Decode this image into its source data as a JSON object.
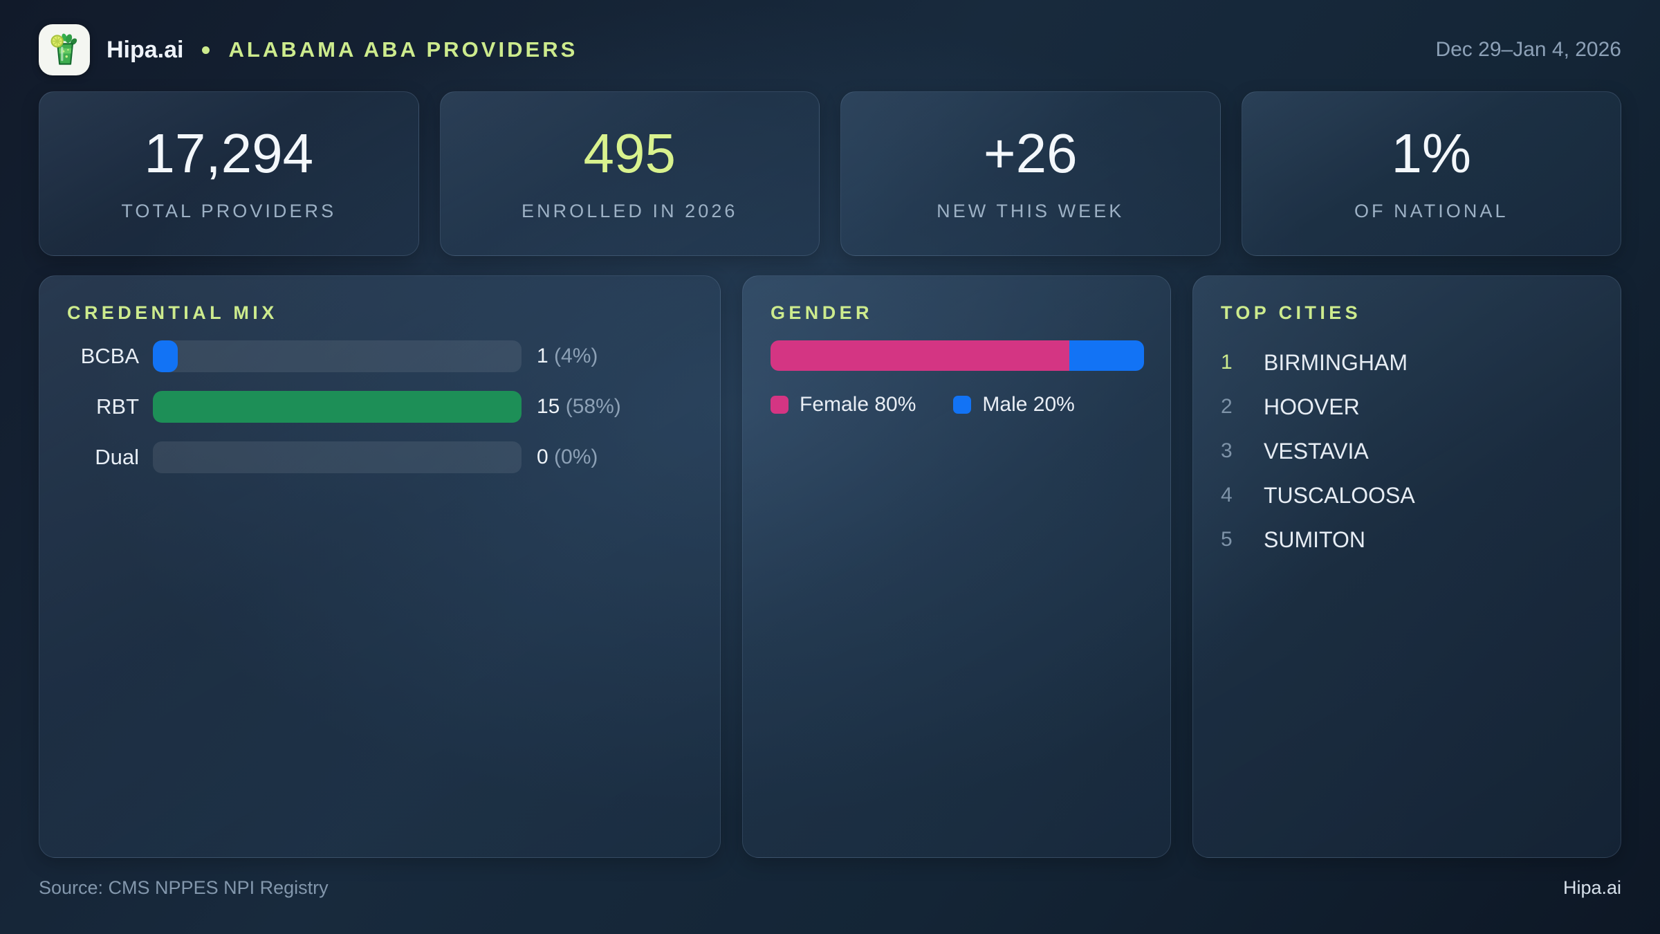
{
  "header": {
    "brand": "Hipa.ai",
    "title": "ALABAMA ABA PROVIDERS",
    "date_range": "Dec 29–Jan 4, 2026"
  },
  "stats": [
    {
      "value": "17,294",
      "label": "TOTAL PROVIDERS",
      "accent": false
    },
    {
      "value": "495",
      "label": "ENROLLED IN 2026",
      "accent": true
    },
    {
      "value": "+26",
      "label": "NEW THIS WEEK",
      "accent": false
    },
    {
      "value": "1%",
      "label": "OF NATIONAL",
      "accent": false
    }
  ],
  "credential_mix": {
    "title": "CREDENTIAL MIX",
    "rows": [
      {
        "label": "BCBA",
        "count": 1,
        "pct_display": "(4%)",
        "color": "#1273f5"
      },
      {
        "label": "RBT",
        "count": 15,
        "pct_display": "(58%)",
        "color": "#1d8f57"
      },
      {
        "label": "Dual",
        "count": 0,
        "pct_display": "(0%)",
        "color": "#1273f5"
      }
    ]
  },
  "gender": {
    "title": "GENDER",
    "segments": [
      {
        "name": "Female",
        "pct": 80,
        "color": "#d43583",
        "legend_label": "Female 80%"
      },
      {
        "name": "Male",
        "pct": 20,
        "color": "#1273f5",
        "legend_label": "Male 20%"
      }
    ]
  },
  "top_cities": {
    "title": "TOP CITIES",
    "items": [
      {
        "rank": "1",
        "name": "BIRMINGHAM"
      },
      {
        "rank": "2",
        "name": "HOOVER"
      },
      {
        "rank": "3",
        "name": "VESTAVIA"
      },
      {
        "rank": "4",
        "name": "TUSCALOOSA"
      },
      {
        "rank": "5",
        "name": "SUMITON"
      }
    ]
  },
  "footer": {
    "source": "Source: CMS NPPES NPI Registry",
    "brand": "Hipa.ai"
  },
  "colors": {
    "accent_green": "#cdeb8d",
    "value_green": "#d9f28e",
    "bar_blue": "#1273f5",
    "bar_green": "#1d8f57",
    "female_pink": "#d43583",
    "male_blue": "#1273f5",
    "track_gray": "#2e3e51"
  },
  "chart_data": [
    {
      "type": "bar",
      "orientation": "horizontal",
      "title": "CREDENTIAL MIX",
      "categories": [
        "BCBA",
        "RBT",
        "Dual"
      ],
      "values": [
        1,
        15,
        0
      ],
      "percent_of_total": [
        4,
        58,
        0
      ],
      "value_labels": [
        "1 (4%)",
        "15 (58%)",
        "0 (0%)"
      ],
      "bar_colors": [
        "#1273f5",
        "#1d8f57",
        "none"
      ],
      "scaling": "bar length proportional to value / max(values); max = 15 fills track",
      "grid": false,
      "legend": false
    },
    {
      "type": "bar",
      "subtype": "stacked-single-horizontal",
      "title": "GENDER",
      "series": [
        {
          "name": "Female",
          "values": [
            80
          ],
          "color": "#d43583"
        },
        {
          "name": "Male",
          "values": [
            20
          ],
          "color": "#1273f5"
        }
      ],
      "unit": "%",
      "xlim": [
        0,
        100
      ],
      "legend_position": "below",
      "legend_labels": [
        "Female 80%",
        "Male 20%"
      ]
    }
  ]
}
